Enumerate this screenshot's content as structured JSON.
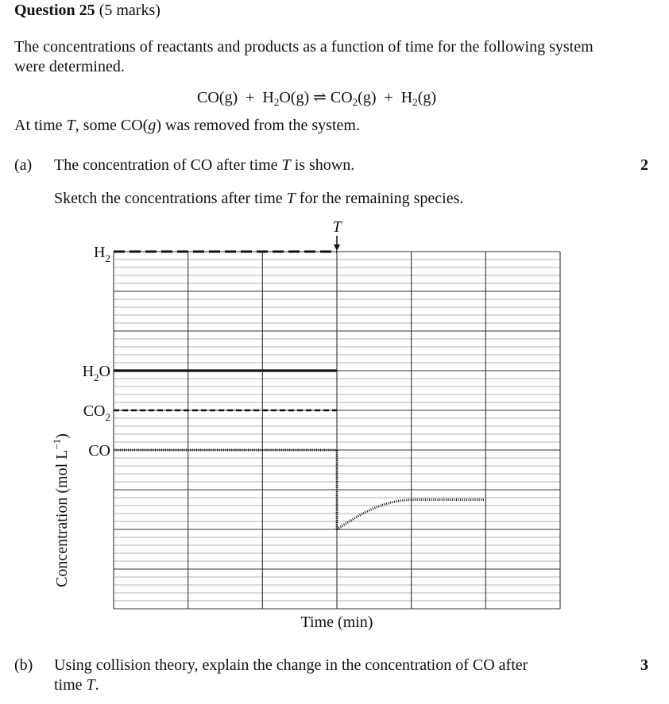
{
  "question": {
    "title": "Question 25",
    "marks": "(5 marks)"
  },
  "intro": "The concentrations of reactants and products as a function of time for the following system were determined.",
  "equation": {
    "reactant1": "CO(g)",
    "plus1": "+",
    "reactant2_a": "H",
    "reactant2_sub": "2",
    "reactant2_b": "O(g)",
    "arrow": "⇌",
    "product1_a": "CO",
    "product1_sub": "2",
    "product1_b": "(g)",
    "plus2": "+",
    "product2_a": "H",
    "product2_sub": "2",
    "product2_b": "(g)"
  },
  "condition": {
    "pre": "At time ",
    "T": "T",
    "post": ", some CO(",
    "g": "g",
    "end": ") was removed from the system."
  },
  "part_a": {
    "label": "(a)",
    "line1_pre": "The concentration of CO after time ",
    "T": "T",
    "line1_post": " is shown.",
    "line2_pre": "Sketch the concentrations after time ",
    "line2_post": " for the remaining species.",
    "marks": "2"
  },
  "part_b": {
    "label": "(b)",
    "line1": "Using collision theory, explain the change in the concentration of CO after",
    "line2_pre": "time ",
    "T": "T",
    "line2_post": ".",
    "marks": "3"
  },
  "chart_data": {
    "type": "line",
    "xlabel": "Time (min)",
    "ylabel": "Concentration (mol L",
    "ylabel_sup": "−1",
    "ylabel_end": ")",
    "marker_label": "T",
    "grid": true,
    "grid_columns": 6,
    "grid_major_rows": 9,
    "series": [
      {
        "name": "H2",
        "label_main": "H",
        "label_sub": "2",
        "style": "dashed-thick",
        "before_T": 9,
        "after_T": null
      },
      {
        "name": "H2O",
        "label_main": "H",
        "label_sub": "2",
        "label_end": "O",
        "style": "solid-thick",
        "before_T": 6,
        "after_T": null
      },
      {
        "name": "CO2",
        "label_main": "CO",
        "label_sub": "2",
        "style": "dashed",
        "before_T": 5,
        "after_T": null
      },
      {
        "name": "CO",
        "label_main": "CO",
        "style": "dotted",
        "before_T": 4,
        "drop_to": 2,
        "recover_to": 2.75
      }
    ]
  }
}
